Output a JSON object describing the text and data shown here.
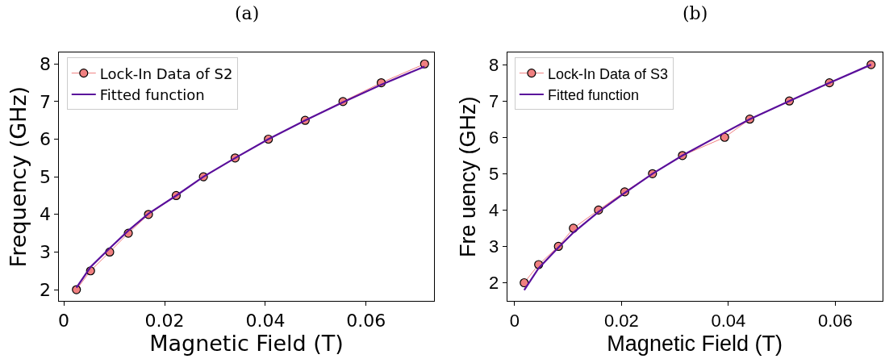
{
  "chart_data": [
    {
      "type": "line",
      "title": "(a)",
      "xlabel": "Magnetic Field (T)",
      "ylabel": "Frequency (GHz)",
      "xlim": [
        -0.0009,
        0.0734
      ],
      "xticks": [
        0,
        0.02,
        0.04,
        0.06
      ],
      "ylim": [
        1.7,
        8.3
      ],
      "yticks": [
        2,
        3,
        4,
        5,
        6,
        7,
        8
      ],
      "legend": "top left",
      "series": [
        {
          "name": "Lock-In Data of S2",
          "color": "#f08080",
          "marker": "circle",
          "x": [
            0.0025,
            0.0053,
            0.0091,
            0.0128,
            0.0168,
            0.0223,
            0.0277,
            0.034,
            0.0406,
            0.0479,
            0.0554,
            0.063,
            0.0716
          ],
          "values": [
            2,
            2.5,
            3,
            3.5,
            4,
            4.5,
            5,
            5.5,
            6,
            6.5,
            7,
            7.5,
            8
          ]
        },
        {
          "name": "Fitted function",
          "color": "#5a0f9b",
          "marker": "none",
          "x": [
            0.0025,
            0.0053,
            0.0091,
            0.0128,
            0.0168,
            0.0223,
            0.0277,
            0.034,
            0.0406,
            0.0479,
            0.0554,
            0.063,
            0.0716
          ],
          "values": [
            2.05,
            2.6,
            3.1,
            3.57,
            4.02,
            4.5,
            5,
            5.5,
            6,
            6.5,
            6.98,
            7.45,
            7.93
          ]
        }
      ]
    },
    {
      "type": "line",
      "title": "(b)",
      "xlabel": "Magnetic Field (T)",
      "ylabel": "Fre uency (GHz)",
      "xlim": [
        -0.0014,
        0.0688
      ],
      "xticks": [
        0,
        0.02,
        0.04,
        0.06
      ],
      "ylim": [
        1.5,
        8.33
      ],
      "yticks": [
        2,
        3,
        4,
        5,
        6,
        7,
        8
      ],
      "legend": "top left",
      "series": [
        {
          "name": "Lock-In Data of S3",
          "color": "#f08080",
          "marker": "circle",
          "x": [
            0.0018,
            0.0045,
            0.0082,
            0.011,
            0.0157,
            0.0206,
            0.0258,
            0.0314,
            0.0393,
            0.044,
            0.0514,
            0.0589,
            0.0667
          ],
          "values": [
            2,
            2.5,
            3,
            3.5,
            4,
            4.5,
            5,
            5.5,
            6,
            6.5,
            7,
            7.5,
            8
          ]
        },
        {
          "name": "Fitted function",
          "color": "#5a0f9b",
          "marker": "none",
          "x": [
            0.0018,
            0.0045,
            0.0082,
            0.011,
            0.0157,
            0.0206,
            0.0258,
            0.0314,
            0.0393,
            0.044,
            0.0514,
            0.0589,
            0.0667
          ],
          "values": [
            1.8,
            2.4,
            2.97,
            3.38,
            3.95,
            4.47,
            5,
            5.5,
            6.13,
            6.5,
            7,
            7.5,
            8
          ]
        }
      ]
    }
  ]
}
